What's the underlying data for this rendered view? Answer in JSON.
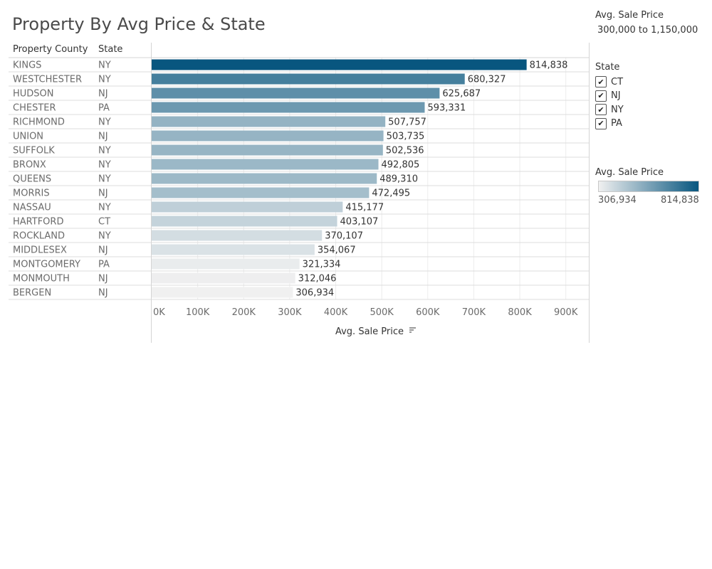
{
  "title": "Property By Avg Price & State",
  "headers": {
    "county": "Property County",
    "state": "State"
  },
  "colors": {
    "low": "#f0f0f0",
    "high": "#08567f"
  },
  "filters": {
    "price_title": "Avg. Sale Price",
    "price_range": "300,000 to 1,150,000",
    "state_title": "State",
    "states": [
      {
        "label": "CT",
        "checked": true,
        "mark": "✔"
      },
      {
        "label": "NJ",
        "checked": true,
        "mark": "✔"
      },
      {
        "label": "NY",
        "checked": true,
        "mark": "✔"
      },
      {
        "label": "PA",
        "checked": true,
        "mark": "✔"
      }
    ],
    "legend_title": "Avg. Sale Price",
    "legend_min": "306,934",
    "legend_max": "814,838"
  },
  "chart_data": {
    "type": "bar",
    "orientation": "horizontal",
    "xlabel": "Avg. Sale Price",
    "xlim": [
      0,
      950000
    ],
    "ticks": [
      0,
      100000,
      200000,
      300000,
      400000,
      500000,
      600000,
      700000,
      800000,
      900000
    ],
    "tick_labels": [
      "0K",
      "100K",
      "200K",
      "300K",
      "400K",
      "500K",
      "600K",
      "700K",
      "800K",
      "900K"
    ],
    "grid": true,
    "rows": [
      {
        "county": "KINGS",
        "state": "NY",
        "value": 814838,
        "label": "814,838"
      },
      {
        "county": "WESTCHESTER",
        "state": "NY",
        "value": 680327,
        "label": "680,327"
      },
      {
        "county": "HUDSON",
        "state": "NJ",
        "value": 625687,
        "label": "625,687"
      },
      {
        "county": "CHESTER",
        "state": "PA",
        "value": 593331,
        "label": "593,331"
      },
      {
        "county": "RICHMOND",
        "state": "NY",
        "value": 507757,
        "label": "507,757"
      },
      {
        "county": "UNION",
        "state": "NJ",
        "value": 503735,
        "label": "503,735"
      },
      {
        "county": "SUFFOLK",
        "state": "NY",
        "value": 502536,
        "label": "502,536"
      },
      {
        "county": "BRONX",
        "state": "NY",
        "value": 492805,
        "label": "492,805"
      },
      {
        "county": "QUEENS",
        "state": "NY",
        "value": 489310,
        "label": "489,310"
      },
      {
        "county": "MORRIS",
        "state": "NJ",
        "value": 472495,
        "label": "472,495"
      },
      {
        "county": "NASSAU",
        "state": "NY",
        "value": 415177,
        "label": "415,177"
      },
      {
        "county": "HARTFORD",
        "state": "CT",
        "value": 403107,
        "label": "403,107"
      },
      {
        "county": "ROCKLAND",
        "state": "NY",
        "value": 370107,
        "label": "370,107"
      },
      {
        "county": "MIDDLESEX",
        "state": "NJ",
        "value": 354067,
        "label": "354,067"
      },
      {
        "county": "MONTGOMERY",
        "state": "PA",
        "value": 321334,
        "label": "321,334"
      },
      {
        "county": "MONMOUTH",
        "state": "NJ",
        "value": 312046,
        "label": "312,046"
      },
      {
        "county": "BERGEN",
        "state": "NJ",
        "value": 306934,
        "label": "306,934"
      }
    ]
  }
}
